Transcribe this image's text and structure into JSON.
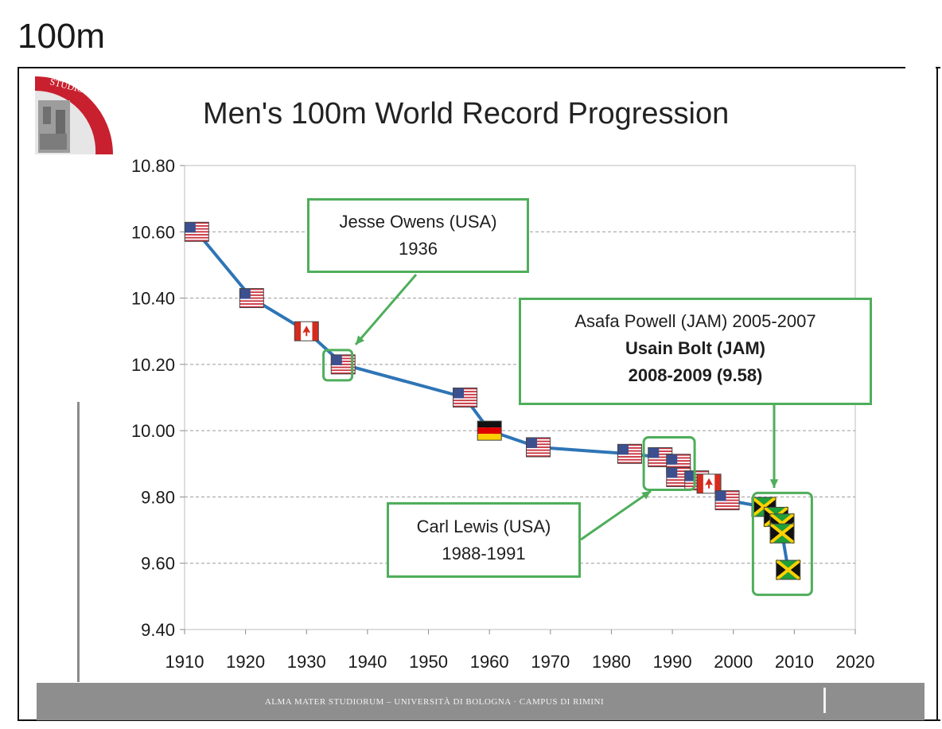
{
  "page_heading": "100m",
  "slide_title": "Men's 100m World Record Progression",
  "logo_text": "STUDIORUM",
  "footer_text": "ALMA MATER STUDIORUM – UNIVERSITÀ DI BOLOGNA · CAMPUS DI RIMINI",
  "annotations": {
    "owens": {
      "line1": "Jesse Owens (USA)",
      "line2": "1936"
    },
    "bolt": {
      "line1": "Asafa Powell (JAM) 2005-2007",
      "line2": "Usain Bolt (JAM)",
      "line3": "2008-2009 (9.58)"
    },
    "lewis": {
      "line1": "Carl Lewis (USA)",
      "line2": "1988-1991"
    }
  },
  "colors": {
    "line": "#2e75b6",
    "annotation": "#4fae5b",
    "grid": "#9a9a9a"
  },
  "chart_data": {
    "type": "line",
    "title": "Men's 100m World Record Progression",
    "xlabel": "",
    "ylabel": "",
    "xlim": [
      1910,
      2020
    ],
    "ylim": [
      9.4,
      10.8
    ],
    "x_ticks": [
      "1910",
      "1920",
      "1930",
      "1940",
      "1950",
      "1960",
      "1970",
      "1980",
      "1990",
      "2000",
      "2010",
      "2020"
    ],
    "y_ticks": [
      "9.40",
      "9.60",
      "9.80",
      "10.00",
      "10.20",
      "10.40",
      "10.60",
      "10.80"
    ],
    "grid": "horizontal dashed",
    "series": [
      {
        "points": [
          {
            "x": 1912,
            "y": 10.6,
            "flag": "USA"
          },
          {
            "x": 1921,
            "y": 10.4,
            "flag": "USA"
          },
          {
            "x": 1930,
            "y": 10.3,
            "flag": "CAN"
          },
          {
            "x": 1936,
            "y": 10.2,
            "flag": "USA"
          },
          {
            "x": 1956,
            "y": 10.1,
            "flag": "USA"
          },
          {
            "x": 1960,
            "y": 10.0,
            "flag": "GER"
          },
          {
            "x": 1968,
            "y": 9.95,
            "flag": "USA"
          },
          {
            "x": 1983,
            "y": 9.93,
            "flag": "USA"
          },
          {
            "x": 1988,
            "y": 9.92,
            "flag": "USA"
          },
          {
            "x": 1991,
            "y": 9.9,
            "flag": "USA"
          },
          {
            "x": 1991,
            "y": 9.86,
            "flag": "USA"
          },
          {
            "x": 1994,
            "y": 9.85,
            "flag": "USA"
          },
          {
            "x": 1996,
            "y": 9.84,
            "flag": "CAN"
          },
          {
            "x": 1999,
            "y": 9.79,
            "flag": "USA"
          },
          {
            "x": 2005,
            "y": 9.77,
            "flag": "JAM"
          },
          {
            "x": 2007,
            "y": 9.74,
            "flag": "JAM"
          },
          {
            "x": 2008,
            "y": 9.72,
            "flag": "JAM"
          },
          {
            "x": 2008,
            "y": 9.69,
            "flag": "JAM"
          },
          {
            "x": 2009,
            "y": 9.58,
            "flag": "JAM"
          }
        ]
      }
    ]
  }
}
